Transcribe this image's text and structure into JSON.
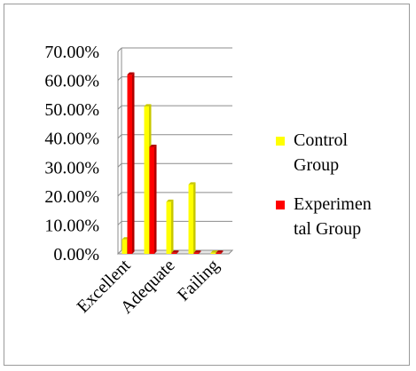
{
  "chart_data": {
    "type": "bar",
    "three_d": true,
    "categories": [
      "Excellent",
      "",
      "Adequate",
      "",
      "Failing"
    ],
    "series": [
      {
        "name": "Control Group",
        "color": "#ffff00",
        "values": [
          0.05,
          0.51,
          0.18,
          0.24,
          0.0
        ]
      },
      {
        "name": "Experimental Group",
        "color": "#ff0000",
        "values": [
          0.62,
          0.37,
          0.0,
          0.0,
          0.0
        ]
      }
    ],
    "y_ticks": [
      "0.00%",
      "10.00%",
      "20.00%",
      "30.00%",
      "40.00%",
      "50.00%",
      "60.00%",
      "70.00%"
    ],
    "ylim": [
      0,
      0.7
    ],
    "grid": true,
    "legend": {
      "position": "right",
      "entries": [
        {
          "lines": [
            "Control",
            "Group"
          ],
          "color": "#ffff00"
        },
        {
          "lines": [
            "Experimen",
            "tal Group"
          ],
          "color": "#ff0000"
        }
      ]
    }
  }
}
